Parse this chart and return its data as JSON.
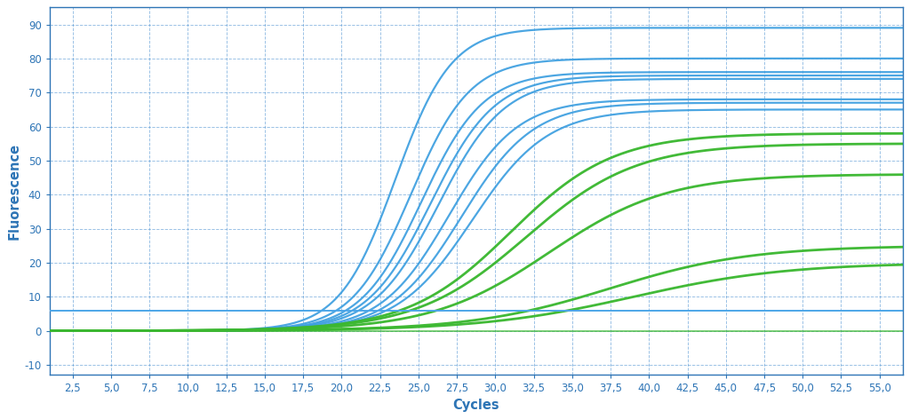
{
  "title": "",
  "xlabel": "Cycles",
  "ylabel": "Fluorescence",
  "xlim": [
    1.0,
    56.5
  ],
  "ylim": [
    -13,
    95
  ],
  "xticks": [
    2.5,
    5.0,
    7.5,
    10.0,
    12.5,
    15.0,
    17.5,
    20.0,
    22.5,
    25.0,
    27.5,
    30.0,
    32.5,
    35.0,
    37.5,
    40.0,
    42.5,
    45.0,
    47.5,
    50.0,
    52.5,
    55.0
  ],
  "yticks": [
    -10,
    0,
    10,
    20,
    30,
    40,
    50,
    60,
    70,
    80,
    90
  ],
  "threshold_y": 6.0,
  "threshold_color": "#4DA6E8",
  "background_color": "#FFFFFF",
  "grid_color": "#5B9BD5",
  "axis_color": "#2E75B6",
  "label_color": "#2E75B6",
  "tick_color": "#2E75B6",
  "blue_color": "#3D9FE0",
  "green_color": "#3CB831",
  "blue_curves": [
    {
      "L": 89,
      "k": 0.55,
      "x0": 23.5
    },
    {
      "L": 80,
      "k": 0.52,
      "x0": 24.5
    },
    {
      "L": 76,
      "k": 0.5,
      "x0": 25.2
    },
    {
      "L": 75,
      "k": 0.48,
      "x0": 25.8
    },
    {
      "L": 74,
      "k": 0.47,
      "x0": 26.3
    },
    {
      "L": 68,
      "k": 0.45,
      "x0": 27.0
    },
    {
      "L": 67,
      "k": 0.43,
      "x0": 27.8
    },
    {
      "L": 65,
      "k": 0.41,
      "x0": 28.5
    }
  ],
  "green_curves": [
    {
      "L": 58,
      "k": 0.3,
      "x0": 31.0
    },
    {
      "L": 55,
      "k": 0.28,
      "x0": 32.0
    },
    {
      "L": 46,
      "k": 0.26,
      "x0": 33.5
    },
    {
      "L": 25,
      "k": 0.22,
      "x0": 37.5
    },
    {
      "L": 20,
      "k": 0.2,
      "x0": 39.0
    }
  ],
  "lw_blue": 1.6,
  "lw_green": 2.0,
  "lw_threshold": 1.4,
  "lw_baseline": 1.2
}
